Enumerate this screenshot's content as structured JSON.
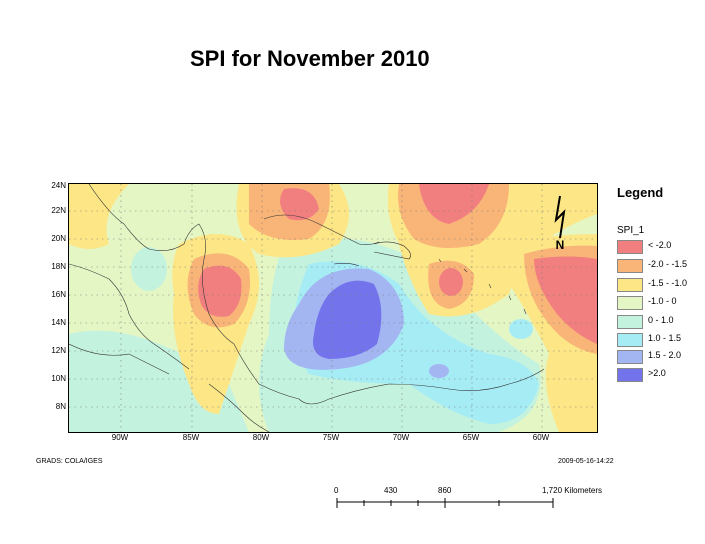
{
  "title": "SPI for November 2010",
  "lat_labels": [
    "24N",
    "22N",
    "20N",
    "18N",
    "16N",
    "14N",
    "12N",
    "10N",
    "8N"
  ],
  "lon_labels": [
    "90W",
    "85W",
    "80W",
    "75W",
    "70W",
    "65W",
    "60W"
  ],
  "legend": {
    "title": "Legend",
    "field": "SPI_1",
    "items": [
      {
        "label": "< -2.0",
        "color": "#f27f80"
      },
      {
        "label": "-2.0 - -1.5",
        "color": "#f9b478"
      },
      {
        "label": "-1.5 -  -1.0",
        "color": "#fde686"
      },
      {
        "label": "-1.0 - 0",
        "color": "#e4f6c4"
      },
      {
        "label": "0 - 1.0",
        "color": "#c3f2df"
      },
      {
        "label": "1.0 - 1.5",
        "color": "#a6ecf5"
      },
      {
        "label": "1.5 - 2.0",
        "color": "#a4b6f2"
      },
      {
        "label": ">2.0",
        "color": "#7373ec"
      }
    ]
  },
  "north_label": "N",
  "credit_left": "GRADS: COLA/IGES",
  "credit_right": "2009-05-16-14:22",
  "scale": {
    "ticks": [
      "0",
      "430",
      "860",
      "1,720 Kilometers"
    ]
  }
}
